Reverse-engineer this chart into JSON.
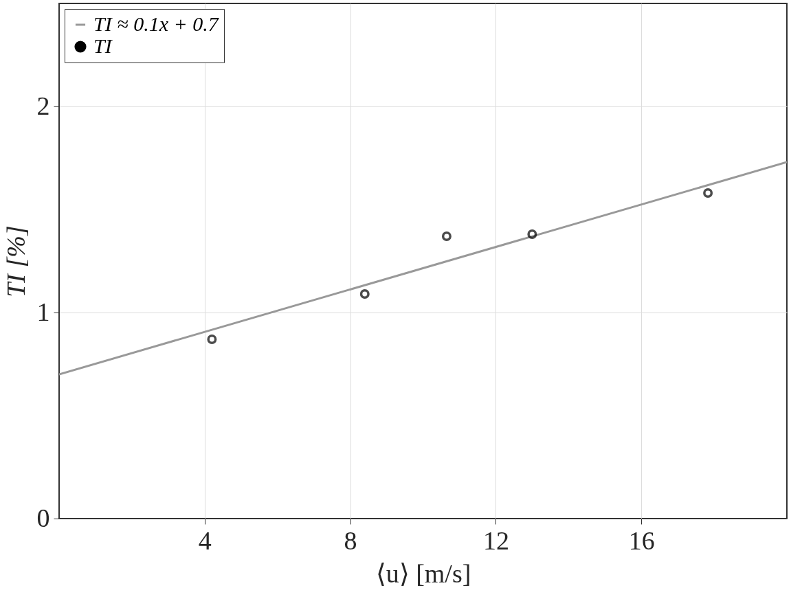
{
  "chart_data": {
    "type": "scatter",
    "xlabel": "⟨u⟩ [m/s]",
    "ylabel": "TI [%]",
    "xlim": [
      0,
      20
    ],
    "xticks": [
      4,
      8,
      12,
      16
    ],
    "ylim": [
      0,
      2.5
    ],
    "yticks": [
      0,
      1,
      2
    ],
    "grid": true,
    "legend": "top left",
    "series": [
      {
        "name": "TI ≈ 0.1x + 0.7",
        "type": "line",
        "color": "#999999",
        "x": [
          0,
          20
        ],
        "values": [
          0.7,
          1.73
        ]
      },
      {
        "name": "TI",
        "marker": "circle",
        "color": "#000000",
        "x": [
          4.2,
          8.4,
          10.65,
          13.0,
          17.83
        ],
        "values": [
          0.87,
          1.09,
          1.37,
          1.38,
          1.58
        ]
      }
    ]
  }
}
